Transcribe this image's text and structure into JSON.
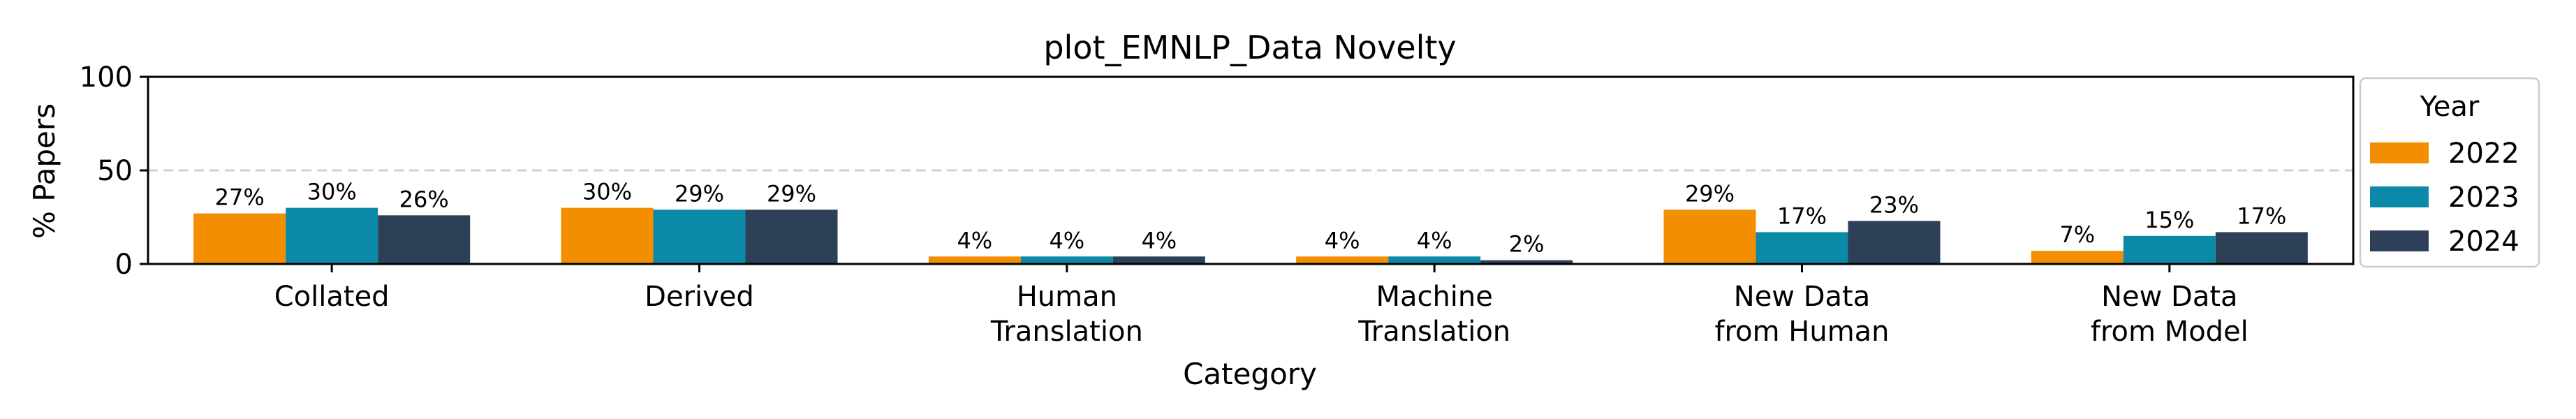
{
  "chart_data": {
    "type": "bar",
    "title": "plot_EMNLP_Data Novelty",
    "xlabel": "Category",
    "ylabel": "% Papers",
    "ylim": [
      0,
      100
    ],
    "yticks": [
      0,
      50,
      100
    ],
    "grid": "dashed horizontal line at 50",
    "legend": {
      "title": "Year",
      "placement": "right, outside plot"
    },
    "categories": [
      [
        "Collated"
      ],
      [
        "Derived"
      ],
      [
        "Human",
        "Translation"
      ],
      [
        "Machine",
        "Translation"
      ],
      [
        "New Data",
        "from Human"
      ],
      [
        "New Data",
        "from Model"
      ]
    ],
    "series": [
      {
        "name": "2022",
        "color": "#F28E00",
        "values": [
          27,
          30,
          4,
          4,
          29,
          7
        ],
        "labels": [
          "27%",
          "30%",
          "4%",
          "4%",
          "29%",
          "7%"
        ]
      },
      {
        "name": "2023",
        "color": "#0A8AA6",
        "values": [
          30,
          29,
          4,
          4,
          17,
          15
        ],
        "labels": [
          "30%",
          "29%",
          "4%",
          "4%",
          "17%",
          "15%"
        ]
      },
      {
        "name": "2024",
        "color": "#2E3F58",
        "values": [
          26,
          29,
          4,
          2,
          23,
          17
        ],
        "labels": [
          "26%",
          "29%",
          "4%",
          "2%",
          "23%",
          "17%"
        ]
      }
    ]
  }
}
